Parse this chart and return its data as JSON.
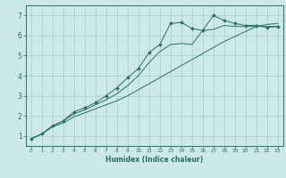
{
  "title": "",
  "xlabel": "Humidex (Indice chaleur)",
  "ylabel": "",
  "bg_color": "#cce8e8",
  "grid_color": "#aacccc",
  "line_color": "#2a7060",
  "xlim": [
    -0.5,
    23.5
  ],
  "ylim": [
    0.5,
    7.5
  ],
  "yticks": [
    1,
    2,
    3,
    4,
    5,
    6,
    7
  ],
  "xticks": [
    0,
    1,
    2,
    3,
    4,
    5,
    6,
    7,
    8,
    9,
    10,
    11,
    12,
    13,
    14,
    15,
    16,
    17,
    18,
    19,
    20,
    21,
    22,
    23
  ],
  "series": [
    {
      "x": [
        0,
        1,
        2,
        3,
        4,
        5,
        6,
        7,
        8,
        9,
        10,
        11,
        12,
        13,
        14,
        15,
        16,
        17,
        18,
        19,
        20,
        21,
        22,
        23
      ],
      "y": [
        0.85,
        1.1,
        1.45,
        1.65,
        1.95,
        2.15,
        2.35,
        2.55,
        2.75,
        3.0,
        3.3,
        3.6,
        3.9,
        4.2,
        4.5,
        4.8,
        5.1,
        5.4,
        5.7,
        5.95,
        6.2,
        6.45,
        6.55,
        6.6
      ],
      "marker": false
    },
    {
      "x": [
        0,
        1,
        2,
        3,
        4,
        5,
        6,
        7,
        8,
        9,
        10,
        11,
        12,
        13,
        14,
        15,
        16,
        17,
        18,
        19,
        20,
        21,
        22,
        23
      ],
      "y": [
        0.85,
        1.1,
        1.5,
        1.75,
        2.1,
        2.3,
        2.55,
        2.8,
        3.1,
        3.5,
        4.0,
        4.65,
        5.2,
        5.55,
        5.6,
        5.55,
        6.25,
        6.3,
        6.5,
        6.45,
        6.45,
        6.45,
        6.45,
        6.45
      ],
      "marker": false
    },
    {
      "x": [
        0,
        1,
        2,
        3,
        4,
        5,
        6,
        7,
        8,
        9,
        10,
        11,
        12,
        13,
        14,
        15,
        16,
        17,
        18,
        19,
        20,
        21,
        22,
        23
      ],
      "y": [
        0.85,
        1.1,
        1.5,
        1.75,
        2.2,
        2.4,
        2.65,
        3.0,
        3.4,
        3.9,
        4.35,
        5.15,
        5.55,
        6.6,
        6.65,
        6.35,
        6.25,
        7.0,
        6.75,
        6.6,
        6.5,
        6.5,
        6.4,
        6.45
      ],
      "marker": true
    }
  ],
  "xlabel_fontsize": 5.5,
  "xlabel_fontweight": "bold",
  "tick_fontsize_x": 4.2,
  "tick_fontsize_y": 5.5,
  "linewidth": 0.7,
  "markersize": 2.0
}
